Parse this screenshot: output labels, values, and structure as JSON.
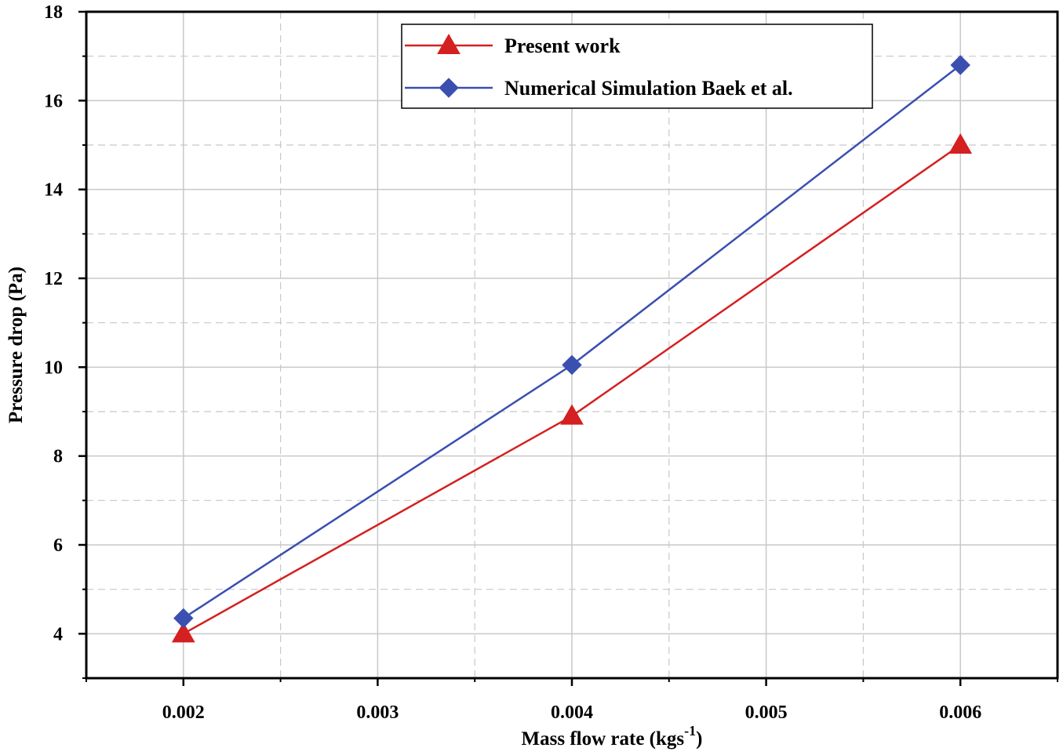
{
  "chart_data": {
    "type": "line",
    "xlabel": "Mass flow rate (kgs",
    "xlabel_superscript": "-1",
    "xlabel_close": ")",
    "ylabel": "Pressure drop (Pa)",
    "xlim": [
      0.0015,
      0.0065
    ],
    "ylim": [
      3,
      18
    ],
    "x_ticks": [
      "0.002",
      "0.003",
      "0.004",
      "0.005",
      "0.006"
    ],
    "y_ticks": [
      "4",
      "6",
      "8",
      "10",
      "12",
      "14",
      "16",
      "18"
    ],
    "grid": true,
    "legend_position": "top-right",
    "x": [
      0.002,
      0.004,
      0.006
    ],
    "series": [
      {
        "name": "Present work",
        "values": [
          4.0,
          8.9,
          15.0
        ],
        "color": "#d42020",
        "marker": "triangle"
      },
      {
        "name": "Numerical Simulation Baek et al.",
        "values": [
          4.35,
          10.05,
          16.8
        ],
        "color": "#3a4fb0",
        "marker": "diamond"
      }
    ]
  }
}
